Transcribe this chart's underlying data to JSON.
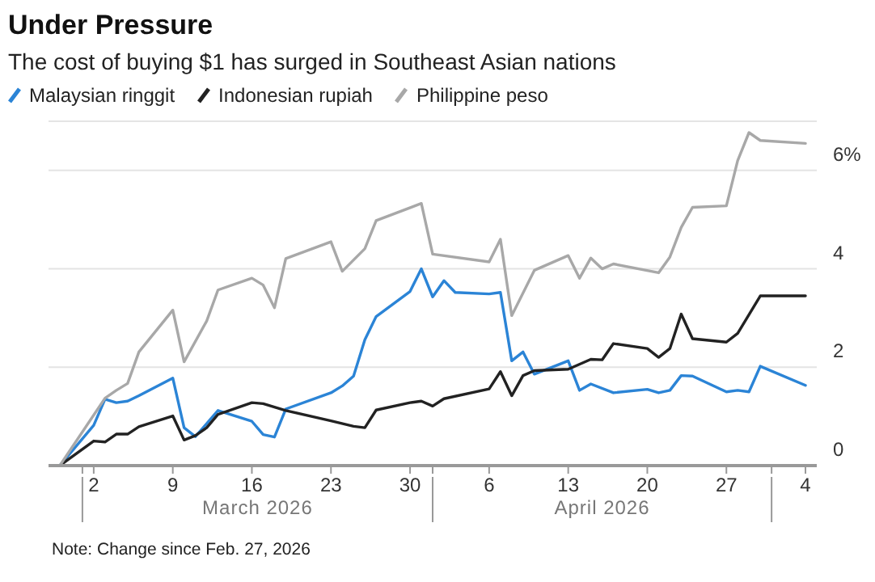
{
  "chart_data": {
    "type": "line",
    "title": "Under Pressure",
    "subtitle": "The cost of buying $1 has surged in Southeast Asian nations",
    "legend": "top left",
    "grid": "y",
    "marker": "none",
    "line_style": "solid",
    "xlim": [
      "2026-02-26",
      "2026-05-05"
    ],
    "xticks": [
      {
        "value": "2026-03-01",
        "label": null
      },
      {
        "value": "2026-03-02",
        "label": "2"
      },
      {
        "value": "2026-03-09",
        "label": "9"
      },
      {
        "value": "2026-03-16",
        "label": "16"
      },
      {
        "value": "2026-03-23",
        "label": "23"
      },
      {
        "value": "2026-03-30",
        "label": "30"
      },
      {
        "value": "2026-04-01",
        "label": null
      },
      {
        "value": "2026-04-06",
        "label": "6"
      },
      {
        "value": "2026-04-13",
        "label": "13"
      },
      {
        "value": "2026-04-20",
        "label": "20"
      },
      {
        "value": "2026-04-27",
        "label": "27"
      },
      {
        "value": "2026-05-01",
        "label": null
      },
      {
        "value": "2026-05-04",
        "label": "4"
      }
    ],
    "ylim": [
      0,
      7
    ],
    "yticks": [
      0,
      2,
      4,
      {
        "value": 6,
        "label": "6%"
      }
    ],
    "annotations": [
      "March 2026",
      "April 2026",
      "Note: Change since Feb. 27, 2026"
    ],
    "series": [
      {
        "name": "Malaysian ringgit",
        "color": "#2b84d6",
        "x": [
          "2026-02-27",
          "2026-03-02",
          "2026-03-03",
          "2026-03-04",
          "2026-03-05",
          "2026-03-06",
          "2026-03-09",
          "2026-03-10",
          "2026-03-11",
          "2026-03-13",
          "2026-03-16",
          "2026-03-17",
          "2026-03-18",
          "2026-03-19",
          "2026-03-23",
          "2026-03-24",
          "2026-03-25",
          "2026-03-26",
          "2026-03-27",
          "2026-03-30",
          "2026-03-31",
          "2026-04-01",
          "2026-04-02",
          "2026-04-03",
          "2026-04-06",
          "2026-04-07",
          "2026-04-08",
          "2026-04-09",
          "2026-04-10",
          "2026-04-13",
          "2026-04-14",
          "2026-04-15",
          "2026-04-17",
          "2026-04-20",
          "2026-04-21",
          "2026-04-22",
          "2026-04-23",
          "2026-04-24",
          "2026-04-27",
          "2026-04-28",
          "2026-04-29",
          "2026-04-30",
          "2026-05-04"
        ],
        "values": [
          0,
          0.82,
          1.35,
          1.28,
          1.31,
          1.42,
          1.78,
          0.77,
          0.59,
          1.12,
          0.9,
          0.63,
          0.58,
          1.15,
          1.48,
          1.62,
          1.82,
          2.56,
          3.03,
          3.54,
          4.0,
          3.43,
          3.76,
          3.52,
          3.49,
          3.52,
          2.13,
          2.31,
          1.86,
          2.13,
          1.53,
          1.66,
          1.48,
          1.55,
          1.48,
          1.53,
          1.83,
          1.82,
          1.5,
          1.53,
          1.5,
          2.02,
          1.63
        ]
      },
      {
        "name": "Indonesian rupiah",
        "color": "#222222",
        "x": [
          "2026-02-27",
          "2026-03-02",
          "2026-03-03",
          "2026-03-04",
          "2026-03-05",
          "2026-03-06",
          "2026-03-09",
          "2026-03-10",
          "2026-03-11",
          "2026-03-12",
          "2026-03-13",
          "2026-03-16",
          "2026-03-17",
          "2026-03-19",
          "2026-03-23",
          "2026-03-25",
          "2026-03-26",
          "2026-03-27",
          "2026-03-30",
          "2026-03-31",
          "2026-04-01",
          "2026-04-02",
          "2026-04-06",
          "2026-04-07",
          "2026-04-08",
          "2026-04-09",
          "2026-04-10",
          "2026-04-13",
          "2026-04-15",
          "2026-04-16",
          "2026-04-17",
          "2026-04-20",
          "2026-04-21",
          "2026-04-22",
          "2026-04-23",
          "2026-04-24",
          "2026-04-27",
          "2026-04-28",
          "2026-04-30",
          "2026-05-04"
        ],
        "values": [
          0,
          0.5,
          0.48,
          0.64,
          0.64,
          0.79,
          1.01,
          0.52,
          0.61,
          0.77,
          1.04,
          1.28,
          1.26,
          1.12,
          0.91,
          0.8,
          0.77,
          1.13,
          1.28,
          1.31,
          1.21,
          1.36,
          1.56,
          1.91,
          1.42,
          1.83,
          1.93,
          1.96,
          2.16,
          2.15,
          2.48,
          2.38,
          2.2,
          2.38,
          3.08,
          2.58,
          2.51,
          2.69,
          3.45,
          3.45
        ]
      },
      {
        "name": "Philippine peso",
        "color": "#a8a8a8",
        "x": [
          "2026-02-27",
          "2026-03-03",
          "2026-03-04",
          "2026-03-05",
          "2026-03-06",
          "2026-03-09",
          "2026-03-10",
          "2026-03-12",
          "2026-03-13",
          "2026-03-16",
          "2026-03-17",
          "2026-03-18",
          "2026-03-19",
          "2026-03-23",
          "2026-03-24",
          "2026-03-26",
          "2026-03-27",
          "2026-03-31",
          "2026-04-01",
          "2026-04-06",
          "2026-04-07",
          "2026-04-08",
          "2026-04-10",
          "2026-04-13",
          "2026-04-14",
          "2026-04-15",
          "2026-04-16",
          "2026-04-17",
          "2026-04-21",
          "2026-04-22",
          "2026-04-23",
          "2026-04-24",
          "2026-04-27",
          "2026-04-28",
          "2026-04-29",
          "2026-04-30",
          "2026-05-04"
        ],
        "values": [
          0,
          1.37,
          1.53,
          1.67,
          2.31,
          3.16,
          2.11,
          2.94,
          3.57,
          3.81,
          3.67,
          3.21,
          4.21,
          4.55,
          3.95,
          4.41,
          4.98,
          5.33,
          4.3,
          4.14,
          4.6,
          3.05,
          3.97,
          4.27,
          3.81,
          4.22,
          4.0,
          4.1,
          3.92,
          4.24,
          4.84,
          5.25,
          5.28,
          6.2,
          6.77,
          6.61,
          6.55
        ]
      }
    ]
  }
}
